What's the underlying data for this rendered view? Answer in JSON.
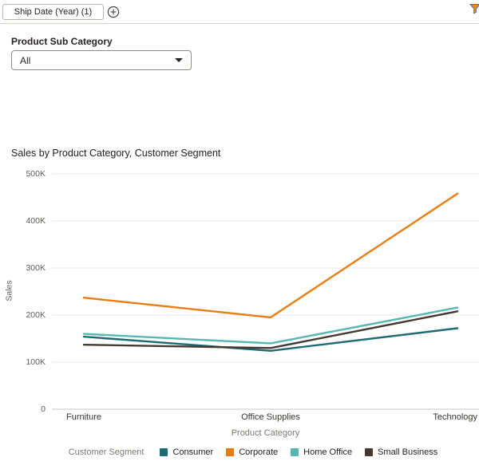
{
  "topbar": {
    "filter_chip_label": "Ship Date (Year) (1)"
  },
  "filter_panel": {
    "label": "Product Sub Category",
    "selected_value": "All"
  },
  "icons": {
    "add_filter": "plus-circle-icon",
    "filter_menu": "funnel-icon",
    "dropdown_caret": "chevron-down-icon"
  },
  "colors": {
    "consumer": "#1d6974",
    "corporate": "#e87d13",
    "home_office": "#57b8b2",
    "small_business": "#45382e",
    "gridline": "#ebe9e6",
    "axis_line": "#c9c5c0"
  },
  "chart_data": {
    "type": "line",
    "title": "Sales by Product Category, Customer Segment",
    "xlabel": "Product Category",
    "ylabel": "Sales",
    "legend_title": "Customer Segment",
    "legend_position": "bottom",
    "grid": true,
    "categories": [
      "Furniture",
      "Office Supplies",
      "Technology"
    ],
    "series": [
      {
        "name": "Consumer",
        "color": "#1d6974",
        "values": [
          154000,
          124000,
          172000
        ]
      },
      {
        "name": "Corporate",
        "color": "#e87d13",
        "values": [
          237000,
          195000,
          458000
        ]
      },
      {
        "name": "Home Office",
        "color": "#57b8b2",
        "values": [
          160000,
          140000,
          216000
        ]
      },
      {
        "name": "Small Business",
        "color": "#45382e",
        "values": [
          137000,
          130000,
          208000
        ]
      }
    ],
    "ylim": [
      0,
      500000
    ],
    "yticks": [
      {
        "value": 0,
        "label": "0"
      },
      {
        "value": 100000,
        "label": "100K"
      },
      {
        "value": 200000,
        "label": "200K"
      },
      {
        "value": 300000,
        "label": "300K"
      },
      {
        "value": 400000,
        "label": "400K"
      },
      {
        "value": 500000,
        "label": "500K"
      }
    ]
  }
}
